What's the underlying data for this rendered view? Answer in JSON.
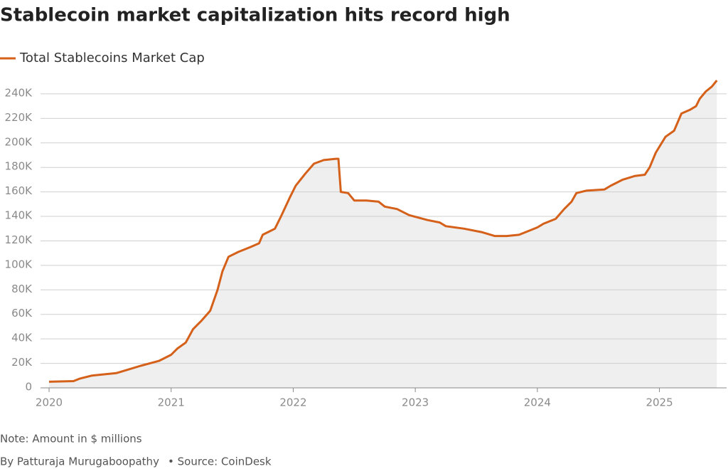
{
  "chart_data": {
    "type": "area-line",
    "title": "Stablecoin market capitalization hits record high",
    "note": "Note: Amount in $ millions",
    "credit": "By Patturaja Murugaboopathy",
    "source": "• Source: CoinDesk",
    "x": [
      2020.0,
      2020.2,
      2020.25,
      2020.35,
      2020.55,
      2020.65,
      2020.75,
      2020.9,
      2021.0,
      2021.05,
      2021.12,
      2021.18,
      2021.25,
      2021.32,
      2021.38,
      2021.42,
      2021.47,
      2021.55,
      2021.65,
      2021.72,
      2021.75,
      2021.85,
      2021.9,
      2021.97,
      2022.02,
      2022.1,
      2022.17,
      2022.25,
      2022.35,
      2022.37,
      2022.39,
      2022.45,
      2022.5,
      2022.6,
      2022.7,
      2022.75,
      2022.85,
      2022.95,
      2023.1,
      2023.2,
      2023.25,
      2023.4,
      2023.55,
      2023.65,
      2023.75,
      2023.85,
      2023.95,
      2024.0,
      2024.05,
      2024.15,
      2024.22,
      2024.28,
      2024.32,
      2024.4,
      2024.55,
      2024.6,
      2024.7,
      2024.8,
      2024.88,
      2024.92,
      2024.97,
      2025.05,
      2025.12,
      2025.18,
      2025.25,
      2025.3,
      2025.33,
      2025.38,
      2025.43,
      2025.47
    ],
    "series": [
      {
        "name": "Total Stablecoins Market Cap",
        "color": "#d4601a",
        "values": [
          5000,
          5500,
          7500,
          10000,
          12000,
          15000,
          18000,
          22000,
          27000,
          32000,
          37000,
          48000,
          55000,
          63000,
          80000,
          95000,
          107000,
          111000,
          115000,
          118000,
          125000,
          130000,
          140000,
          155000,
          165000,
          175000,
          183000,
          186000,
          187000,
          187000,
          160000,
          159000,
          153000,
          153000,
          152000,
          148000,
          146000,
          141000,
          137000,
          135000,
          132000,
          130000,
          127000,
          124000,
          124000,
          125000,
          129000,
          131000,
          134000,
          138000,
          146000,
          152000,
          159000,
          161000,
          162000,
          165000,
          170000,
          173000,
          174000,
          180000,
          192000,
          205000,
          210000,
          224000,
          227000,
          230000,
          236000,
          242000,
          246000,
          251000
        ]
      }
    ],
    "xlim": [
      2019.93,
      2025.55
    ],
    "xticks": [
      2020,
      2021,
      2022,
      2023,
      2024,
      2025
    ],
    "ylim": [
      0,
      260000
    ],
    "yticks": [
      0,
      {
        "value": 20000,
        "label": "20K"
      },
      {
        "value": 40000,
        "label": "40K"
      },
      {
        "value": 60000,
        "label": "60K"
      },
      {
        "value": 80000,
        "label": "80K"
      },
      {
        "value": 100000,
        "label": "100K"
      },
      {
        "value": 120000,
        "label": "120K"
      },
      {
        "value": 140000,
        "label": "140K"
      },
      {
        "value": 160000,
        "label": "160K"
      },
      {
        "value": 180000,
        "label": "180K"
      },
      {
        "value": 200000,
        "label": "200K"
      },
      {
        "value": 220000,
        "label": "220K"
      },
      {
        "value": 240000,
        "label": "240K"
      }
    ],
    "grid": true,
    "fill": "#efefef"
  }
}
